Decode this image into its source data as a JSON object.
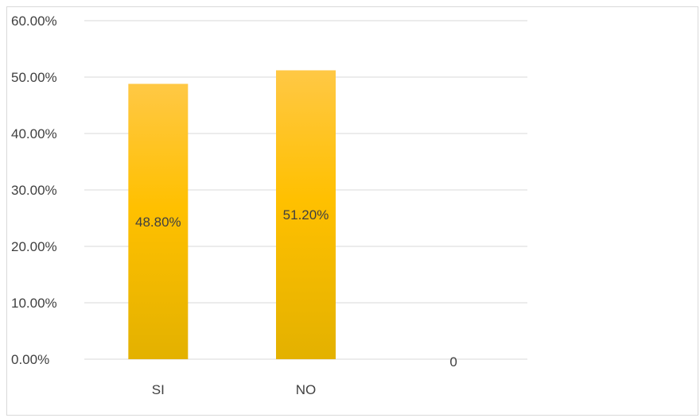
{
  "chart_data": {
    "type": "bar",
    "categories": [
      "SI",
      "NO",
      "0"
    ],
    "values": [
      0.488,
      0.512,
      0
    ],
    "data_labels": [
      "48.80%",
      "51.20%",
      ""
    ],
    "y_ticks": [
      "0.00%",
      "10.00%",
      "20.00%",
      "30.00%",
      "40.00%",
      "50.00%",
      "60.00%"
    ],
    "ylim": [
      0,
      0.6
    ],
    "grid": true,
    "title": "",
    "xlabel": "",
    "ylabel": "",
    "colors": {
      "bar_top": "#FFC845",
      "bar_mid": "#FFC000",
      "bar_bottom": "#E3B100",
      "grid": "#d9d9d9",
      "text": "#404040"
    }
  }
}
